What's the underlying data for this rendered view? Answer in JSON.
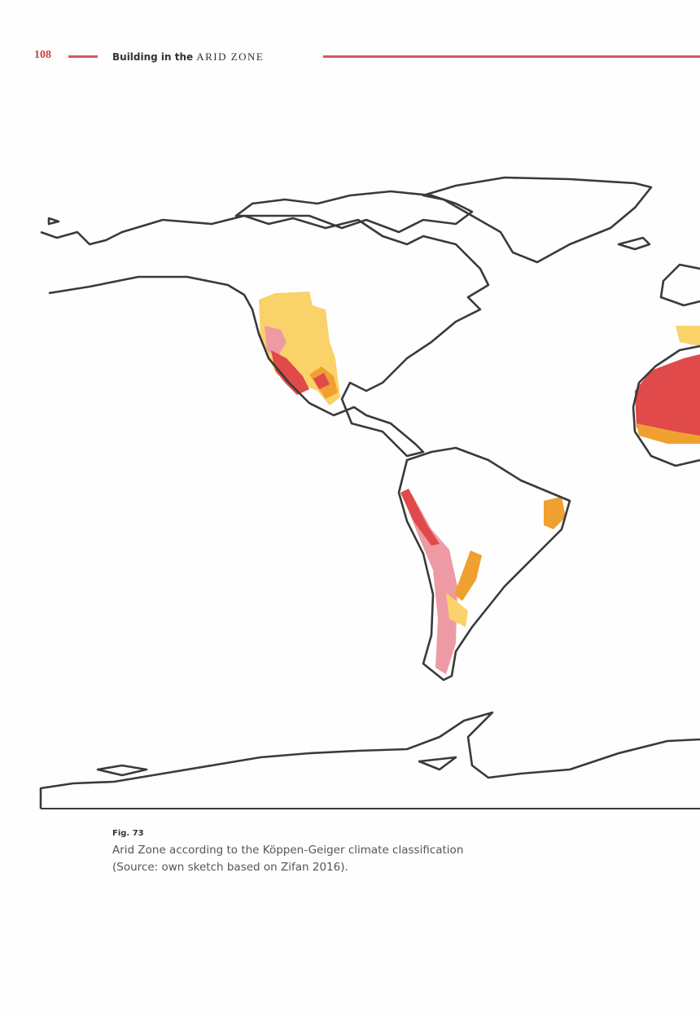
{
  "header": {
    "page_number": "108",
    "running_title": "Building in the",
    "running_title_emphasis": "ARID ZONE"
  },
  "figure": {
    "label": "Fig. 73",
    "caption": [
      "Arid Zone according to the Köppen-Geiger climate classification",
      "(Source: own sketch based on Zifan 2016)."
    ]
  }
}
